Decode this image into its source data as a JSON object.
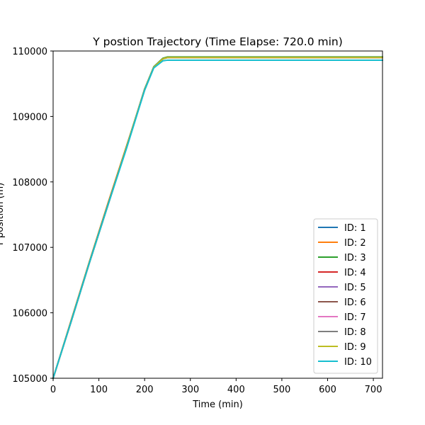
{
  "chart_data": {
    "type": "line",
    "title": "Y postion Trajectory (Time Elapse: 720.0 min)",
    "xlabel": "Time (min)",
    "ylabel": "Y position (m)",
    "xlim": [
      0,
      720
    ],
    "ylim": [
      105000,
      110000
    ],
    "xticks": [
      0,
      100,
      200,
      300,
      400,
      500,
      600,
      700
    ],
    "yticks": [
      105000,
      106000,
      107000,
      108000,
      109000,
      110000
    ],
    "grid": false,
    "legend_placement": "lower-right",
    "series": [
      {
        "name": "ID: 1",
        "color": "#1f77b4",
        "x": [
          0,
          40,
          80,
          120,
          160,
          200,
          220,
          240,
          250,
          720
        ],
        "y": [
          105000,
          105880,
          106780,
          107650,
          108520,
          109420,
          109750,
          109880,
          109900,
          109900
        ]
      },
      {
        "name": "ID: 2",
        "color": "#ff7f0e",
        "x": [
          0,
          40,
          80,
          120,
          160,
          200,
          220,
          240,
          250,
          720
        ],
        "y": [
          105000,
          105900,
          106800,
          107680,
          108540,
          109400,
          109750,
          109880,
          109900,
          109900
        ]
      },
      {
        "name": "ID: 3",
        "color": "#2ca02c",
        "x": [
          0,
          40,
          80,
          120,
          160,
          200,
          220,
          240,
          250,
          720
        ],
        "y": [
          105000,
          105890,
          106790,
          107660,
          108530,
          109420,
          109760,
          109890,
          109910,
          109910
        ]
      },
      {
        "name": "ID: 4",
        "color": "#d62728",
        "x": [
          0,
          40,
          80,
          120,
          160,
          200,
          220,
          240,
          250,
          720
        ],
        "y": [
          105000,
          105880,
          106780,
          107650,
          108520,
          109410,
          109750,
          109880,
          109900,
          109900
        ]
      },
      {
        "name": "ID: 5",
        "color": "#9467bd",
        "x": [
          0,
          40,
          80,
          120,
          160,
          200,
          220,
          240,
          250,
          720
        ],
        "y": [
          105000,
          105880,
          106780,
          107650,
          108520,
          109410,
          109750,
          109880,
          109900,
          109900
        ]
      },
      {
        "name": "ID: 6",
        "color": "#8c564b",
        "x": [
          0,
          40,
          80,
          120,
          160,
          200,
          220,
          240,
          250,
          720
        ],
        "y": [
          105000,
          105880,
          106780,
          107650,
          108520,
          109410,
          109750,
          109880,
          109900,
          109900
        ]
      },
      {
        "name": "ID: 7",
        "color": "#e377c2",
        "x": [
          0,
          40,
          80,
          120,
          160,
          200,
          220,
          240,
          250,
          720
        ],
        "y": [
          105000,
          105880,
          106780,
          107650,
          108520,
          109410,
          109750,
          109880,
          109900,
          109900
        ]
      },
      {
        "name": "ID: 8",
        "color": "#7f7f7f",
        "x": [
          0,
          40,
          80,
          120,
          160,
          200,
          220,
          240,
          250,
          720
        ],
        "y": [
          105000,
          105880,
          106780,
          107650,
          108520,
          109410,
          109750,
          109880,
          109900,
          109900
        ]
      },
      {
        "name": "ID: 9",
        "color": "#bcbd22",
        "x": [
          0,
          40,
          80,
          120,
          160,
          200,
          220,
          240,
          250,
          720
        ],
        "y": [
          105000,
          105880,
          106780,
          107650,
          108520,
          109410,
          109750,
          109880,
          109900,
          109900
        ]
      },
      {
        "name": "ID: 10",
        "color": "#17becf",
        "x": [
          0,
          40,
          80,
          120,
          160,
          200,
          220,
          240,
          250,
          720
        ],
        "y": [
          105000,
          105880,
          106780,
          107650,
          108500,
          109400,
          109740,
          109850,
          109860,
          109860
        ]
      }
    ]
  }
}
